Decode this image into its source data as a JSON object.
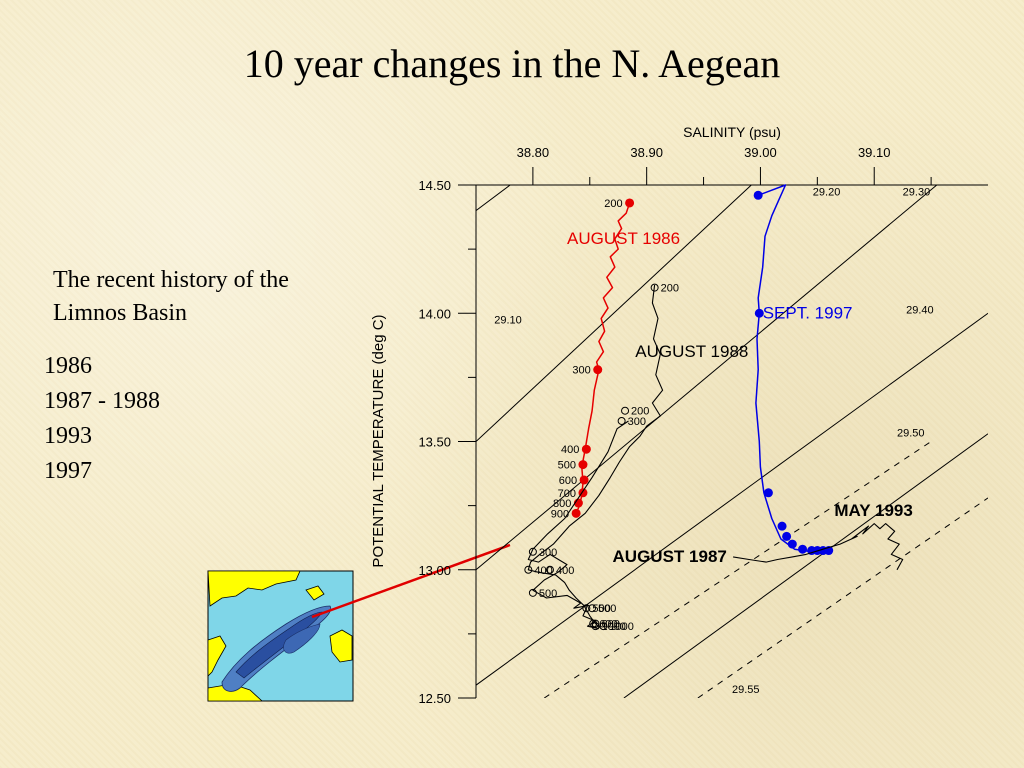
{
  "slide": {
    "title": "10 year changes in the N. Aegean",
    "history_heading": "The recent history of the Limnos Basin",
    "years": [
      "1986",
      "1987 - 1988",
      "1993",
      "1997"
    ]
  },
  "map_inset": {
    "description_colors": {
      "land": "#ffff00",
      "water": "#7fd6e8",
      "deep": "#2a4fa0",
      "pointer": "#e00000"
    }
  },
  "chart_data": {
    "type": "scatter",
    "title": "",
    "xlabel": "SALINITY (psu)",
    "ylabel": "POTENTIAL TEMPERATURE (deg C)",
    "xlim": [
      38.75,
      39.2
    ],
    "ylim": [
      12.5,
      14.5
    ],
    "x_ticks": [
      "38.80",
      "38.90",
      "39.00",
      "39.10"
    ],
    "y_ticks": [
      "14.50",
      "14.00",
      "13.50",
      "13.00",
      "12.50"
    ],
    "density_contours": [
      {
        "label": "29.10",
        "style": "solid",
        "points": [
          [
            38.75,
            14.4
          ],
          [
            38.78,
            14.5
          ]
        ]
      },
      {
        "label": "29.20",
        "style": "solid",
        "points": [
          [
            38.75,
            13.5
          ],
          [
            38.992,
            14.5
          ]
        ]
      },
      {
        "label": "29.30",
        "style": "solid",
        "points": [
          [
            38.75,
            13.0
          ],
          [
            39.155,
            14.5
          ]
        ]
      },
      {
        "label": "29.40",
        "style": "solid",
        "points": [
          [
            38.75,
            12.55
          ],
          [
            39.2,
            14.0
          ]
        ]
      },
      {
        "label": "29.50",
        "style": "solid",
        "points": [
          [
            38.88,
            12.5
          ],
          [
            39.2,
            13.53
          ]
        ]
      },
      {
        "label": "29.55",
        "style": "dashed",
        "points": [
          [
            38.81,
            12.5
          ],
          [
            39.15,
            13.5
          ]
        ]
      },
      {
        "label": "",
        "style": "dashed",
        "points": [
          [
            38.945,
            12.5
          ],
          [
            39.2,
            13.28
          ]
        ]
      }
    ],
    "contour_labels": [
      {
        "text": "29.10",
        "x": 38.766,
        "y": 13.96
      },
      {
        "text": "29.20",
        "x": 39.046,
        "y": 14.46
      },
      {
        "text": "29.30",
        "x": 39.125,
        "y": 14.46
      },
      {
        "text": "29.40",
        "x": 39.128,
        "y": 14.0
      },
      {
        "text": "29.50",
        "x": 39.12,
        "y": 13.52
      },
      {
        "text": "29.55",
        "x": 38.975,
        "y": 12.52
      }
    ],
    "series": [
      {
        "name": "AUGUST 1986",
        "color": "#e60000",
        "label_pos": {
          "x": 38.83,
          "y": 14.27
        },
        "profile": [
          [
            38.885,
            14.43
          ],
          [
            38.882,
            14.39
          ],
          [
            38.875,
            14.36
          ],
          [
            38.878,
            14.33
          ],
          [
            38.872,
            14.29
          ],
          [
            38.875,
            14.25
          ],
          [
            38.868,
            14.22
          ],
          [
            38.872,
            14.18
          ],
          [
            38.865,
            14.14
          ],
          [
            38.87,
            14.1
          ],
          [
            38.862,
            14.06
          ],
          [
            38.866,
            14.02
          ],
          [
            38.86,
            13.98
          ],
          [
            38.863,
            13.93
          ],
          [
            38.858,
            13.89
          ],
          [
            38.862,
            13.85
          ],
          [
            38.856,
            13.81
          ],
          [
            38.858,
            13.78
          ],
          [
            38.854,
            13.7
          ],
          [
            38.852,
            13.62
          ],
          [
            38.849,
            13.55
          ],
          [
            38.846,
            13.47
          ],
          [
            38.843,
            13.4
          ],
          [
            38.844,
            13.34
          ],
          [
            38.843,
            13.29
          ],
          [
            38.841,
            13.25
          ],
          [
            38.838,
            13.22
          ]
        ],
        "points": [
          {
            "x": 38.885,
            "y": 14.43,
            "label": "200"
          },
          {
            "x": 38.857,
            "y": 13.78,
            "label": "300"
          },
          {
            "x": 38.847,
            "y": 13.47,
            "label": "400"
          },
          {
            "x": 38.844,
            "y": 13.41,
            "label": "500"
          },
          {
            "x": 38.845,
            "y": 13.35,
            "label": "600"
          },
          {
            "x": 38.844,
            "y": 13.3,
            "label": "700"
          },
          {
            "x": 38.84,
            "y": 13.26,
            "label": "800"
          },
          {
            "x": 38.838,
            "y": 13.22,
            "label": "900"
          }
        ]
      },
      {
        "name": "AUGUST 1988",
        "color": "#000000",
        "label_pos": {
          "x": 38.89,
          "y": 13.83
        },
        "profile": [
          [
            38.907,
            14.11
          ],
          [
            38.905,
            14.04
          ],
          [
            38.91,
            13.98
          ],
          [
            38.906,
            13.9
          ],
          [
            38.912,
            13.84
          ],
          [
            38.908,
            13.76
          ],
          [
            38.914,
            13.7
          ],
          [
            38.905,
            13.65
          ],
          [
            38.912,
            13.6
          ],
          [
            38.9,
            13.56
          ],
          [
            38.894,
            13.52
          ],
          [
            38.885,
            13.48
          ],
          [
            38.876,
            13.42
          ],
          [
            38.868,
            13.36
          ],
          [
            38.858,
            13.29
          ],
          [
            38.846,
            13.22
          ],
          [
            38.832,
            13.17
          ],
          [
            38.818,
            13.1
          ],
          [
            38.806,
            13.06
          ],
          [
            38.798,
            13.03
          ],
          [
            38.796,
            13.0
          ],
          [
            38.805,
            12.99
          ],
          [
            38.82,
            12.98
          ],
          [
            38.828,
            12.95
          ],
          [
            38.832,
            12.92
          ],
          [
            38.838,
            12.89
          ],
          [
            38.845,
            12.86
          ],
          [
            38.85,
            12.82
          ],
          [
            38.855,
            12.79
          ],
          [
            38.86,
            12.77
          ]
        ],
        "points": [
          {
            "x": 38.907,
            "y": 14.1,
            "label": "200"
          },
          {
            "x": 38.878,
            "y": 13.58,
            "label": "300"
          },
          {
            "x": 38.796,
            "y": 13.0,
            "label": "400"
          },
          {
            "x": 38.8,
            "y": 12.91,
            "label": "500"
          },
          {
            "x": 38.847,
            "y": 12.85,
            "label": "500"
          },
          {
            "x": 38.855,
            "y": 12.79,
            "label": "600"
          },
          {
            "x": 38.862,
            "y": 12.78,
            "label": "1000"
          }
        ]
      },
      {
        "name": "AUGUST 1987",
        "color": "#000000",
        "label_pos": {
          "x": 38.87,
          "y": 13.03
        },
        "profile": [
          [
            38.884,
            13.58
          ],
          [
            38.874,
            13.55
          ],
          [
            38.866,
            13.46
          ],
          [
            38.852,
            13.36
          ],
          [
            38.84,
            13.28
          ],
          [
            38.828,
            13.2
          ],
          [
            38.813,
            13.14
          ],
          [
            38.8,
            13.08
          ],
          [
            38.796,
            13.04
          ],
          [
            38.805,
            13.03
          ],
          [
            38.815,
            13.06
          ],
          [
            38.83,
            13.02
          ],
          [
            38.822,
            12.99
          ],
          [
            38.81,
            12.96
          ],
          [
            38.8,
            12.92
          ],
          [
            38.812,
            12.89
          ],
          [
            38.83,
            12.9
          ],
          [
            38.842,
            12.87
          ],
          [
            38.836,
            12.85
          ],
          [
            38.848,
            12.86
          ],
          [
            38.844,
            12.82
          ],
          [
            38.855,
            12.8
          ],
          [
            38.848,
            12.78
          ],
          [
            38.858,
            12.77
          ]
        ],
        "points": [
          {
            "x": 38.881,
            "y": 13.62,
            "label": "200"
          },
          {
            "x": 38.8,
            "y": 13.07,
            "label": "300"
          },
          {
            "x": 38.815,
            "y": 13.0,
            "label": "400"
          },
          {
            "x": 38.852,
            "y": 12.85,
            "label": "500"
          },
          {
            "x": 38.853,
            "y": 12.79,
            "label": "600"
          },
          {
            "x": 38.855,
            "y": 12.78,
            "label": "1000"
          }
        ]
      },
      {
        "name": "SEPT. 1997",
        "color": "#0000e6",
        "label_pos": {
          "x": 39.002,
          "y": 13.98
        },
        "profile": [
          [
            38.998,
            14.46
          ],
          [
            39.022,
            14.5
          ],
          [
            39.016,
            14.44
          ],
          [
            39.01,
            14.38
          ],
          [
            39.004,
            14.3
          ],
          [
            39.002,
            14.18
          ],
          [
            38.998,
            14.06
          ],
          [
            38.999,
            14.0
          ],
          [
            38.997,
            13.9
          ],
          [
            38.998,
            13.78
          ],
          [
            38.996,
            13.65
          ],
          [
            38.999,
            13.5
          ],
          [
            39.0,
            13.4
          ],
          [
            39.003,
            13.3
          ],
          [
            39.01,
            13.2
          ],
          [
            39.018,
            13.12
          ],
          [
            39.03,
            13.08
          ],
          [
            39.045,
            13.07
          ],
          [
            39.06,
            13.07
          ]
        ],
        "points": [
          {
            "x": 38.998,
            "y": 14.46,
            "label": ""
          },
          {
            "x": 38.999,
            "y": 14.0,
            "label": ""
          },
          {
            "x": 39.007,
            "y": 13.3,
            "label": ""
          },
          {
            "x": 39.019,
            "y": 13.17,
            "label": ""
          },
          {
            "x": 39.023,
            "y": 13.13,
            "label": ""
          },
          {
            "x": 39.028,
            "y": 13.1,
            "label": ""
          },
          {
            "x": 39.037,
            "y": 13.08,
            "label": ""
          },
          {
            "x": 39.045,
            "y": 13.075,
            "label": ""
          },
          {
            "x": 39.05,
            "y": 13.075,
            "label": ""
          },
          {
            "x": 39.055,
            "y": 13.075,
            "label": ""
          },
          {
            "x": 39.06,
            "y": 13.075,
            "label": ""
          }
        ]
      },
      {
        "name": "MAY 1993",
        "color": "#000000",
        "label_pos": {
          "x": 39.065,
          "y": 13.21
        },
        "profile": [
          [
            38.976,
            13.05
          ],
          [
            38.99,
            13.04
          ],
          [
            39.005,
            13.03
          ],
          [
            39.015,
            13.04
          ],
          [
            39.028,
            13.05
          ],
          [
            39.04,
            13.06
          ],
          [
            39.055,
            13.08
          ],
          [
            39.07,
            13.1
          ],
          [
            39.085,
            13.13
          ],
          [
            39.08,
            13.12
          ],
          [
            39.095,
            13.17
          ],
          [
            39.09,
            13.14
          ],
          [
            39.1,
            13.18
          ],
          [
            39.105,
            13.16
          ],
          [
            39.11,
            13.18
          ],
          [
            39.118,
            13.15
          ],
          [
            39.112,
            13.12
          ],
          [
            39.122,
            13.1
          ],
          [
            39.115,
            13.06
          ],
          [
            39.125,
            13.04
          ],
          [
            39.12,
            13.0
          ]
        ]
      }
    ]
  }
}
